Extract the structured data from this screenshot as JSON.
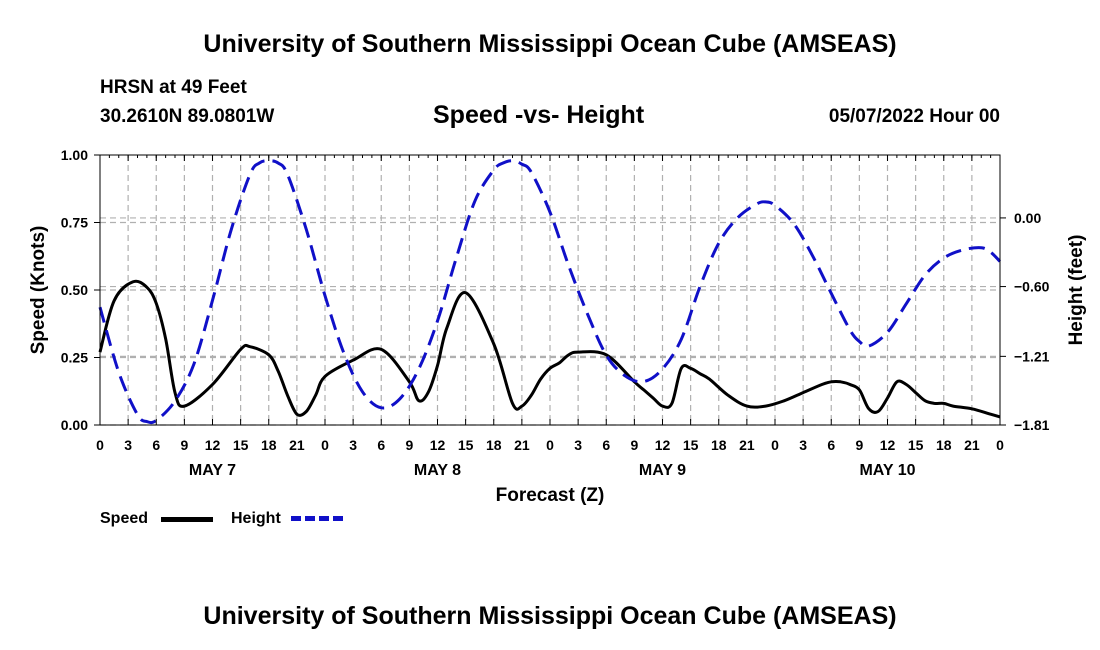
{
  "header": {
    "title": "University of Southern Mississippi Ocean Cube (AMSEAS)",
    "station": "HRSN at 49 Feet",
    "coords": "30.2610N  89.0801W",
    "subtitle": "Speed -vs- Height",
    "datetime": "05/07/2022 Hour 00"
  },
  "legend": {
    "speed": "Speed",
    "height": "Height"
  },
  "footer": {
    "title": "University of Southern Mississippi Ocean Cube (AMSEAS)"
  },
  "colors": {
    "speed": "#000000",
    "height": "#1010c8",
    "grid": "#b0b0b0"
  },
  "chart_data": {
    "type": "line",
    "title": "Speed -vs- Height",
    "xlabel": "Forecast (Z)",
    "ylabel": "Speed (Knots)",
    "y2label": "Height (feet)",
    "xlim": [
      0,
      96
    ],
    "ylim": [
      0,
      1
    ],
    "y2lim": [
      -1.81,
      0.55
    ],
    "x_ticks": [
      0,
      3,
      6,
      9,
      12,
      15,
      18,
      21,
      24,
      27,
      30,
      33,
      36,
      39,
      42,
      45,
      48,
      51,
      54,
      57,
      60,
      63,
      66,
      69,
      72,
      75,
      78,
      81,
      84,
      87,
      90,
      93,
      96
    ],
    "x_tick_labels": [
      "0",
      "3",
      "6",
      "9",
      "12",
      "15",
      "18",
      "21",
      "0",
      "3",
      "6",
      "9",
      "12",
      "15",
      "18",
      "21",
      "0",
      "3",
      "6",
      "9",
      "12",
      "15",
      "18",
      "21",
      "0",
      "3",
      "6",
      "9",
      "12",
      "15",
      "18",
      "21",
      "0"
    ],
    "day_labels": [
      {
        "label": "MAY 7",
        "x": 12
      },
      {
        "label": "MAY 8",
        "x": 36
      },
      {
        "label": "MAY 9",
        "x": 60
      },
      {
        "label": "MAY 10",
        "x": 84
      }
    ],
    "y_ticks": [
      0,
      0.25,
      0.5,
      0.75,
      1.0
    ],
    "y_tick_labels": [
      "0.00",
      "0.25",
      "0.50",
      "0.75",
      "1.00"
    ],
    "y2_ticks": [
      -1.81,
      -1.21,
      -0.6,
      0.0
    ],
    "y2_tick_labels": [
      "−1.81",
      "−1.21",
      "−0.60",
      "0.00"
    ],
    "series": [
      {
        "name": "Speed",
        "axis": "left",
        "style": "solid",
        "x": [
          0,
          1.5,
          3.5,
          5,
          6,
          7,
          8,
          9,
          12,
          15,
          16,
          18,
          19,
          20,
          21,
          22,
          23,
          24,
          27,
          30,
          33,
          34,
          35,
          36,
          37,
          39,
          42,
          44,
          45,
          46,
          47,
          48,
          49,
          50,
          51,
          54,
          57,
          58,
          59,
          60,
          61,
          62,
          63,
          64,
          65,
          67,
          69,
          71,
          73,
          75,
          77,
          78,
          79,
          80,
          81,
          82,
          83,
          84,
          85,
          86,
          87,
          88,
          89,
          90,
          91,
          93,
          95,
          96
        ],
        "y": [
          0.27,
          0.46,
          0.53,
          0.51,
          0.45,
          0.32,
          0.12,
          0.07,
          0.15,
          0.28,
          0.29,
          0.26,
          0.2,
          0.11,
          0.04,
          0.05,
          0.11,
          0.18,
          0.24,
          0.28,
          0.16,
          0.09,
          0.12,
          0.22,
          0.36,
          0.49,
          0.3,
          0.08,
          0.07,
          0.11,
          0.17,
          0.21,
          0.23,
          0.26,
          0.27,
          0.26,
          0.16,
          0.13,
          0.1,
          0.07,
          0.08,
          0.21,
          0.21,
          0.19,
          0.17,
          0.11,
          0.07,
          0.07,
          0.09,
          0.12,
          0.15,
          0.16,
          0.16,
          0.15,
          0.13,
          0.06,
          0.05,
          0.1,
          0.16,
          0.15,
          0.12,
          0.09,
          0.08,
          0.08,
          0.07,
          0.06,
          0.04,
          0.03
        ]
      },
      {
        "name": "Height",
        "axis": "right",
        "style": "dashed",
        "x": [
          0,
          2,
          4,
          5,
          6,
          8,
          10,
          12,
          14,
          16,
          17,
          18,
          19,
          20,
          22,
          24,
          26,
          28,
          30,
          32,
          34,
          36,
          38,
          40,
          42,
          43,
          44,
          45,
          46,
          48,
          50,
          52,
          54,
          56,
          58,
          60,
          62,
          64,
          66,
          68,
          70,
          71,
          72,
          74,
          76,
          78,
          80,
          81,
          82,
          84,
          86,
          88,
          90,
          92,
          94,
          95,
          96
        ],
        "y": [
          -0.78,
          -1.35,
          -1.72,
          -1.78,
          -1.77,
          -1.6,
          -1.28,
          -0.72,
          -0.1,
          0.38,
          0.48,
          0.5,
          0.48,
          0.38,
          -0.1,
          -0.68,
          -1.18,
          -1.52,
          -1.66,
          -1.58,
          -1.32,
          -0.9,
          -0.35,
          0.15,
          0.42,
          0.48,
          0.5,
          0.47,
          0.4,
          0.05,
          -0.42,
          -0.84,
          -1.2,
          -1.38,
          -1.43,
          -1.32,
          -1.06,
          -0.6,
          -0.22,
          0.0,
          0.12,
          0.14,
          0.11,
          -0.05,
          -0.33,
          -0.66,
          -0.98,
          -1.08,
          -1.12,
          -1.0,
          -0.75,
          -0.5,
          -0.35,
          -0.28,
          -0.26,
          -0.3,
          -0.38
        ]
      }
    ]
  }
}
